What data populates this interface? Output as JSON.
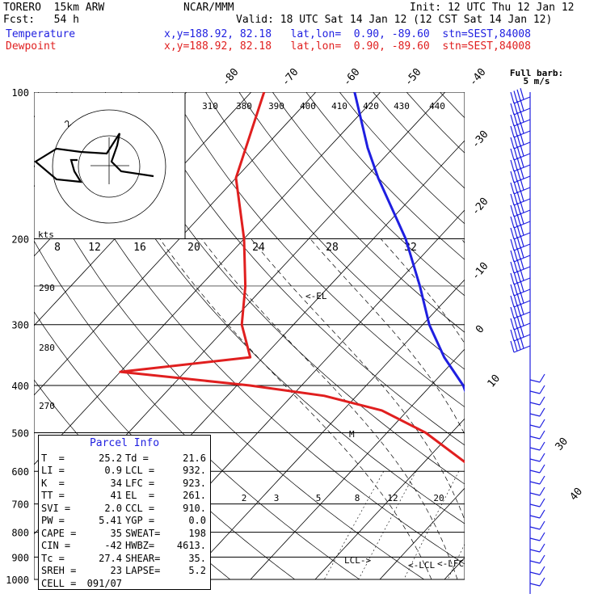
{
  "header": {
    "model": "TORERO  15km ARW",
    "org": "NCAR/MMM",
    "init": "Init: 12 UTC Thu 12 Jan 12",
    "fcst": "Fcst:   54 h",
    "valid": "Valid: 18 UTC Sat 14 Jan 12 (12 CST Sat 14 Jan 12)",
    "temp_label": "Temperature",
    "dew_label": "Dewpoint",
    "temp_loc": "x,y=188.92, 82.18   lat,lon=  0.90, -89.60  stn=SEST,84008",
    "dew_loc": "x,y=188.92, 82.18   lat,lon=  0.90, -89.60  stn=SEST,84008",
    "barb_title_1": "Full barb:",
    "barb_title_2": "5 m/s"
  },
  "colors": {
    "temperature": "#1f1fe0",
    "dewpoint": "#e01f1f",
    "grid": "#000000"
  },
  "chart_data": {
    "type": "line",
    "diagram": "skew-T log-p",
    "y_axis": {
      "pressure_levels": [
        100,
        200,
        300,
        400,
        500,
        600,
        700,
        800,
        900,
        1000
      ],
      "ylim": [
        1000,
        100
      ]
    },
    "isotherm_labels": [
      "-80",
      "-70",
      "-60",
      "-50",
      "-40",
      "-30",
      "-20",
      "-10",
      "0",
      "10",
      "30",
      "40"
    ],
    "theta_labels": [
      "310",
      "380",
      "390",
      "400",
      "410",
      "420",
      "430",
      "440",
      "290",
      "280",
      "270"
    ],
    "mixing_ratio_labels": [
      "2",
      "3",
      "5",
      "8",
      "12",
      "20"
    ],
    "hodograph": {
      "ring_labels": [
        "8",
        "12",
        "16",
        "20",
        "24",
        "28",
        "32"
      ],
      "ring_unit": "kts",
      "ring_mark": "2"
    },
    "series": [
      {
        "name": "Temperature",
        "points": [
          [
            1000,
            26.0
          ],
          [
            975,
            23.5
          ],
          [
            950,
            22.0
          ],
          [
            900,
            20.0
          ],
          [
            850,
            18.5
          ],
          [
            800,
            16.5
          ],
          [
            700,
            10.5
          ],
          [
            600,
            3.5
          ],
          [
            500,
            -5.0
          ],
          [
            450,
            -10.0
          ],
          [
            400,
            -15.0
          ],
          [
            350,
            -22.0
          ],
          [
            300,
            -29.0
          ],
          [
            250,
            -36.0
          ],
          [
            200,
            -45.0
          ],
          [
            150,
            -58.0
          ],
          [
            130,
            -64.0
          ],
          [
            100,
            -74.0
          ]
        ]
      },
      {
        "name": "Dewpoint",
        "points": [
          [
            1000,
            21.0
          ],
          [
            950,
            19.0
          ],
          [
            900,
            17.5
          ],
          [
            850,
            15.5
          ],
          [
            800,
            13.5
          ],
          [
            700,
            8.0
          ],
          [
            600,
            -0.5
          ],
          [
            500,
            -14.0
          ],
          [
            450,
            -24.0
          ],
          [
            420,
            -35.0
          ],
          [
            400,
            -48.0
          ],
          [
            375,
            -70.0
          ],
          [
            350,
            -52.0
          ],
          [
            300,
            -58.0
          ],
          [
            250,
            -63.0
          ],
          [
            200,
            -70.0
          ],
          [
            150,
            -80.0
          ],
          [
            100,
            -88.0
          ]
        ]
      }
    ],
    "annotations": [
      "<-EL",
      "LCL->",
      "<-LCL",
      "<-LFC",
      "M"
    ]
  },
  "parcel": {
    "title": "Parcel Info",
    "rows": [
      [
        {
          "k": "T  =",
          "v": "25.2"
        },
        {
          "k": "Td =",
          "v": "21.6"
        }
      ],
      [
        {
          "k": "LI =",
          "v": "0.9"
        },
        {
          "k": "LCL =",
          "v": "932."
        }
      ],
      [
        {
          "k": "K  =",
          "v": "34"
        },
        {
          "k": "LFC =",
          "v": "923."
        }
      ],
      [
        {
          "k": "TT =",
          "v": "41"
        },
        {
          "k": "EL  =",
          "v": "261."
        }
      ],
      [
        {
          "k": "SVI =",
          "v": "2.0"
        },
        {
          "k": "CCL =",
          "v": "910."
        }
      ],
      [
        {
          "k": "PW =",
          "v": "5.41"
        },
        {
          "k": "YGP =",
          "v": "0.0"
        }
      ],
      [
        {
          "k": "CAPE =",
          "v": "35"
        },
        {
          "k": "SWEAT=",
          "v": "198"
        }
      ],
      [
        {
          "k": "CIN =",
          "v": "-42"
        },
        {
          "k": "HWBZ=",
          "v": "4613."
        }
      ],
      [
        {
          "k": "Tc =",
          "v": "27.4"
        },
        {
          "k": "SHEAR=",
          "v": "35."
        }
      ],
      [
        {
          "k": "SREH =",
          "v": "23"
        },
        {
          "k": "LAPSE=",
          "v": "5.2"
        }
      ],
      [
        {
          "k": "CELL =",
          "v": "091/07"
        }
      ]
    ]
  }
}
